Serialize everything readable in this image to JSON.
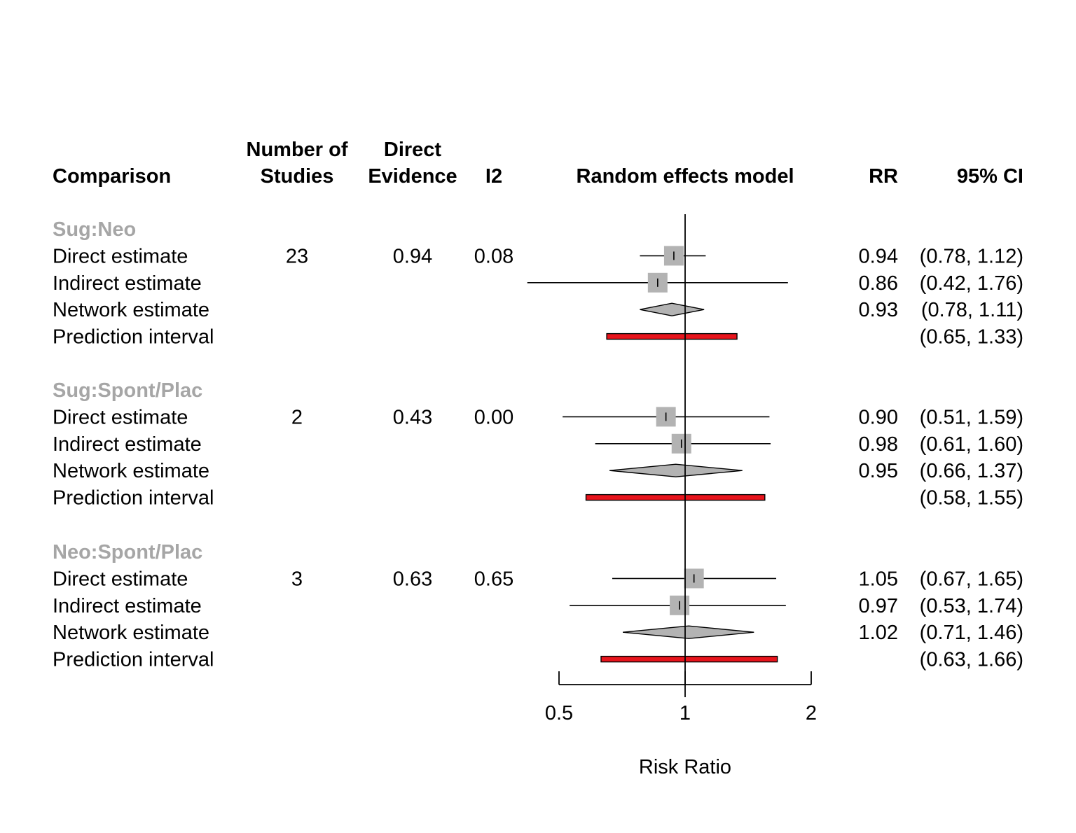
{
  "headers": {
    "comparison": "Comparison",
    "studies_line1": "Number of",
    "studies_line2": "Studies",
    "evidence_line1": "Direct",
    "evidence_line2": "Evidence",
    "i2": "I2",
    "model": "Random effects model",
    "rr": "RR",
    "ci": "95% CI"
  },
  "chart_data": {
    "type": "forest",
    "xlabel": "Risk Ratio",
    "x_scale": "log",
    "xlim": [
      0.5,
      2
    ],
    "ticks": [
      0.5,
      1,
      2
    ],
    "tick_labels": [
      "0.5",
      "1",
      "2"
    ],
    "reference_line": 1,
    "colors": {
      "square": "#b3b3b3",
      "diamond": "#b3b3b3",
      "prediction": "#e8141c",
      "group_label": "#a6a6a6"
    },
    "groups": [
      {
        "name": "Sug:Neo",
        "studies": "23",
        "direct_evidence": "0.94",
        "i2": "0.08",
        "rows": [
          {
            "label": "Direct estimate",
            "kind": "direct",
            "rr": 0.94,
            "lo": 0.78,
            "hi": 1.12,
            "rr_text": "0.94",
            "ci_text": "(0.78, 1.12)"
          },
          {
            "label": "Indirect estimate",
            "kind": "indirect",
            "rr": 0.86,
            "lo": 0.42,
            "hi": 1.76,
            "rr_text": "0.86",
            "ci_text": "(0.42, 1.76)"
          },
          {
            "label": "Network estimate",
            "kind": "network",
            "rr": 0.93,
            "lo": 0.78,
            "hi": 1.11,
            "rr_text": "0.93",
            "ci_text": "(0.78, 1.11)"
          },
          {
            "label": "Prediction interval",
            "kind": "prediction",
            "rr": null,
            "lo": 0.65,
            "hi": 1.33,
            "rr_text": "",
            "ci_text": "(0.65, 1.33)"
          }
        ]
      },
      {
        "name": "Sug:Spont/Plac",
        "studies": "2",
        "direct_evidence": "0.43",
        "i2": "0.00",
        "rows": [
          {
            "label": "Direct estimate",
            "kind": "direct",
            "rr": 0.9,
            "lo": 0.51,
            "hi": 1.59,
            "rr_text": "0.90",
            "ci_text": "(0.51, 1.59)"
          },
          {
            "label": "Indirect estimate",
            "kind": "indirect",
            "rr": 0.98,
            "lo": 0.61,
            "hi": 1.6,
            "rr_text": "0.98",
            "ci_text": "(0.61, 1.60)"
          },
          {
            "label": "Network estimate",
            "kind": "network",
            "rr": 0.95,
            "lo": 0.66,
            "hi": 1.37,
            "rr_text": "0.95",
            "ci_text": "(0.66, 1.37)"
          },
          {
            "label": "Prediction interval",
            "kind": "prediction",
            "rr": null,
            "lo": 0.58,
            "hi": 1.55,
            "rr_text": "",
            "ci_text": "(0.58, 1.55)"
          }
        ]
      },
      {
        "name": "Neo:Spont/Plac",
        "studies": "3",
        "direct_evidence": "0.63",
        "i2": "0.65",
        "rows": [
          {
            "label": "Direct estimate",
            "kind": "direct",
            "rr": 1.05,
            "lo": 0.67,
            "hi": 1.65,
            "rr_text": "1.05",
            "ci_text": "(0.67, 1.65)"
          },
          {
            "label": "Indirect estimate",
            "kind": "indirect",
            "rr": 0.97,
            "lo": 0.53,
            "hi": 1.74,
            "rr_text": "0.97",
            "ci_text": "(0.53, 1.74)"
          },
          {
            "label": "Network estimate",
            "kind": "network",
            "rr": 1.02,
            "lo": 0.71,
            "hi": 1.46,
            "rr_text": "1.02",
            "ci_text": "(0.71, 1.46)"
          },
          {
            "label": "Prediction interval",
            "kind": "prediction",
            "rr": null,
            "lo": 0.63,
            "hi": 1.66,
            "rr_text": "",
            "ci_text": "(0.63, 1.66)"
          }
        ]
      }
    ]
  }
}
